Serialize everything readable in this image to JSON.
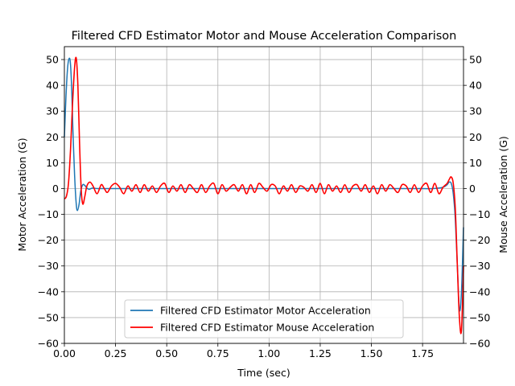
{
  "chart_data": {
    "type": "line",
    "title": "Filtered CFD Estimator Motor and Mouse Acceleration Comparison",
    "xlabel": "Time (sec)",
    "ylabel_left": "Motor Acceleration (G)",
    "ylabel_right": "Mouse Acceleration (G)",
    "xlim": [
      0,
      1.95
    ],
    "ylim": [
      -60,
      55
    ],
    "xticks": [
      0.0,
      0.25,
      0.5,
      0.75,
      1.0,
      1.25,
      1.5,
      1.75
    ],
    "xtick_labels": [
      "0.00",
      "0.25",
      "0.50",
      "0.75",
      "1.00",
      "1.25",
      "1.50",
      "1.75"
    ],
    "yticks": [
      -60,
      -50,
      -40,
      -30,
      -20,
      -10,
      0,
      10,
      20,
      30,
      40,
      50
    ],
    "ytick_labels": [
      "−60",
      "−50",
      "−40",
      "−30",
      "−20",
      "−10",
      "0",
      "10",
      "20",
      "30",
      "40",
      "50"
    ],
    "grid": true,
    "legend_position": "lower-center",
    "series": [
      {
        "name": "Filtered CFD Estimator Motor Acceleration",
        "color": "#1f77b4",
        "x": [
          0,
          0.008,
          0.016,
          0.024,
          0.03,
          0.036,
          0.042,
          0.05,
          0.058,
          0.064,
          0.072,
          0.08,
          0.09,
          0.1,
          0.11,
          0.12,
          0.13,
          0.14,
          0.16,
          0.2,
          0.3,
          0.5,
          0.75,
          1.0,
          1.25,
          1.5,
          1.7,
          1.8,
          1.85,
          1.87,
          1.88,
          1.89,
          1.9,
          1.91,
          1.92,
          1.93,
          1.94,
          1.95
        ],
        "y": [
          20,
          36,
          47,
          50.5,
          48,
          38,
          22,
          5,
          -6,
          -8.5,
          -6,
          -1,
          1.5,
          1.2,
          0.2,
          -0.3,
          0,
          0.2,
          0,
          0,
          0,
          0,
          0,
          0,
          0,
          0,
          0,
          0,
          0.5,
          1.5,
          2.5,
          2,
          -2,
          -12,
          -30,
          -47,
          -40,
          -15
        ]
      },
      {
        "name": "Filtered CFD Estimator Mouse Acceleration",
        "color": "#ff0000",
        "x": [
          0,
          0.01,
          0.02,
          0.03,
          0.04,
          0.05,
          0.058,
          0.066,
          0.074,
          0.082,
          0.09,
          0.1,
          0.11,
          0.125,
          0.14,
          0.16,
          0.18,
          0.195,
          0.21,
          0.23,
          0.25,
          0.27,
          0.29,
          0.31,
          0.33,
          0.35,
          0.37,
          0.39,
          0.41,
          0.43,
          0.45,
          0.47,
          0.49,
          0.51,
          0.53,
          0.55,
          0.57,
          0.59,
          0.61,
          0.63,
          0.65,
          0.67,
          0.69,
          0.71,
          0.73,
          0.75,
          0.77,
          0.79,
          0.81,
          0.83,
          0.85,
          0.87,
          0.89,
          0.91,
          0.93,
          0.95,
          0.97,
          0.99,
          1.01,
          1.03,
          1.05,
          1.07,
          1.09,
          1.11,
          1.13,
          1.15,
          1.17,
          1.19,
          1.21,
          1.23,
          1.25,
          1.27,
          1.29,
          1.31,
          1.33,
          1.35,
          1.37,
          1.39,
          1.41,
          1.43,
          1.45,
          1.47,
          1.49,
          1.51,
          1.53,
          1.55,
          1.57,
          1.59,
          1.61,
          1.63,
          1.65,
          1.67,
          1.69,
          1.71,
          1.73,
          1.75,
          1.77,
          1.79,
          1.81,
          1.83,
          1.85,
          1.87,
          1.88,
          1.89,
          1.9,
          1.91,
          1.92,
          1.93,
          1.94,
          1.95
        ],
        "y": [
          -4,
          -3,
          2,
          15,
          33,
          47,
          50.5,
          40,
          18,
          0,
          -6,
          -3,
          1,
          2.5,
          1,
          -2,
          1.5,
          0,
          -1.5,
          1,
          2,
          0.5,
          -2,
          1,
          -1,
          1.5,
          -1.5,
          1.5,
          -1,
          1,
          -1.5,
          1,
          2,
          -1.5,
          1,
          -1,
          1.5,
          -1.5,
          1.5,
          0,
          -1.5,
          1.5,
          -1.5,
          1,
          2,
          -2,
          1.5,
          -1,
          0.5,
          1.5,
          -1,
          1.5,
          -2,
          1.5,
          -1.5,
          2,
          0.5,
          -1,
          1.5,
          1,
          -2,
          1,
          -1,
          1.5,
          -1.5,
          1,
          0.5,
          -1,
          1.5,
          -1.5,
          2,
          -2,
          1.5,
          -1,
          1,
          -1.5,
          1.5,
          -1.5,
          1,
          1.5,
          -1,
          1.5,
          -1.5,
          1,
          -2,
          1.5,
          -1,
          1.5,
          0,
          -1.5,
          1.5,
          1,
          -1.5,
          1.5,
          -1.5,
          1,
          2,
          -1.5,
          2,
          -2,
          0.5,
          2,
          3.5,
          4.5,
          2,
          -8,
          -30,
          -50,
          -55,
          -30
        ]
      }
    ]
  }
}
